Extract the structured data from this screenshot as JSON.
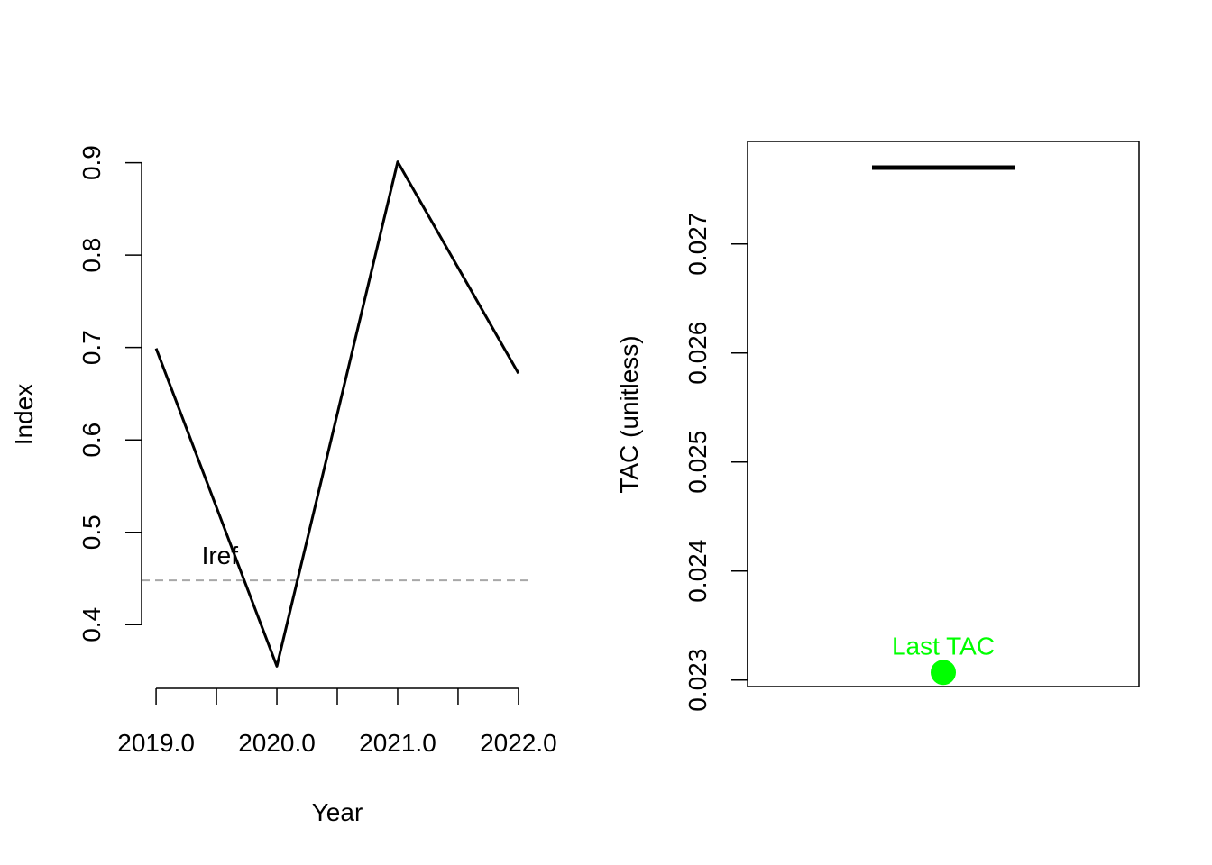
{
  "chart_data": [
    {
      "type": "line",
      "xlabel": "Year",
      "ylabel": "Index",
      "x": [
        2019,
        2020,
        2021,
        2022
      ],
      "series": [
        {
          "values": [
            0.699,
            0.355,
            0.901,
            0.672
          ]
        }
      ],
      "reference_line": {
        "label": "Iref",
        "value": 0.448,
        "style": "dashed",
        "color": "#a8a8a8"
      },
      "xticks": [
        2019.0,
        2019.5,
        2020.0,
        2020.5,
        2021.0,
        2021.5,
        2022.0
      ],
      "xtick_labels": [
        {
          "value": 2019.0,
          "label": "2019.0"
        },
        {
          "value": 2020.0,
          "label": "2020.0"
        },
        {
          "value": 2021.0,
          "label": "2021.0"
        },
        {
          "value": 2022.0,
          "label": "2022.0"
        }
      ],
      "yticks": [
        0.4,
        0.5,
        0.6,
        0.7,
        0.8,
        0.9
      ],
      "ytick_labels": [
        "0.4",
        "0.5",
        "0.6",
        "0.7",
        "0.8",
        "0.9"
      ],
      "xlim": [
        2018.88,
        2022.12
      ],
      "ylim": [
        0.333,
        0.923
      ],
      "grid": false,
      "box": false
    },
    {
      "type": "scatter",
      "ylabel": "TAC (unitless)",
      "new_tac": {
        "value": 0.0277,
        "color": "#000000"
      },
      "last_tac": {
        "label": "Last TAC",
        "value": 0.02307,
        "color": "#00ff00"
      },
      "yticks": [
        0.023,
        0.024,
        0.025,
        0.026,
        0.027
      ],
      "ytick_labels": [
        "0.023",
        "0.024",
        "0.025",
        "0.026",
        "0.027"
      ],
      "ylim": [
        0.02294,
        0.02794
      ],
      "grid": false,
      "box": true
    }
  ]
}
